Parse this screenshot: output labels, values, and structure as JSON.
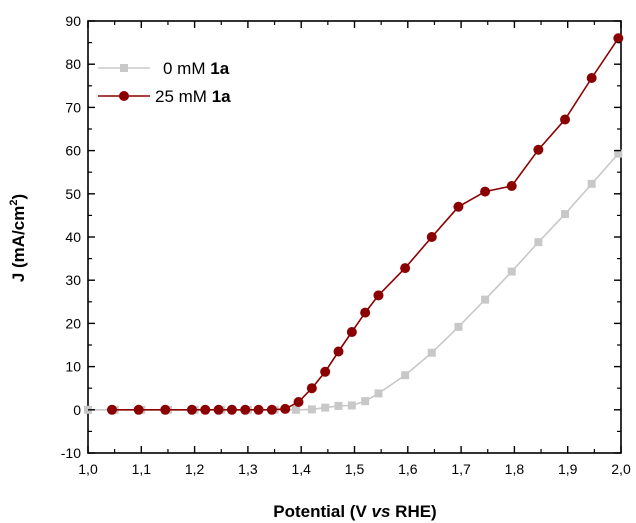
{
  "chart_data": {
    "type": "line",
    "xlabel": {
      "pre": "Potential (V ",
      "italic": "vs",
      "post": " RHE)"
    },
    "ylabel": {
      "main": "J (mA/cm",
      "sup": "2",
      "close": ")"
    },
    "xlim": [
      1.0,
      2.0
    ],
    "ylim": [
      -10,
      90
    ],
    "x_ticks": [
      1.0,
      1.1,
      1.2,
      1.3,
      1.4,
      1.5,
      1.6,
      1.7,
      1.8,
      1.9,
      2.0
    ],
    "x_tick_labels": [
      "1,0",
      "1,1",
      "1,2",
      "1,3",
      "1,4",
      "1,5",
      "1,6",
      "1,7",
      "1,8",
      "1,9",
      "2,0"
    ],
    "y_ticks": [
      -10,
      0,
      10,
      20,
      30,
      40,
      50,
      60,
      70,
      80,
      90
    ],
    "y_tick_labels": [
      "-10",
      "0",
      "10",
      "20",
      "30",
      "40",
      "50",
      "60",
      "70",
      "80",
      "90"
    ],
    "legend_position": "top-left",
    "series": [
      {
        "name": "0 mM 1a",
        "legend": {
          "pre": "0 mM ",
          "bold": "1a"
        },
        "color": "#c8c8c8",
        "marker": "square",
        "x": [
          1.0,
          1.05,
          1.1,
          1.15,
          1.2,
          1.25,
          1.3,
          1.35,
          1.39,
          1.42,
          1.445,
          1.47,
          1.495,
          1.52,
          1.545,
          1.595,
          1.645,
          1.695,
          1.745,
          1.795,
          1.845,
          1.895,
          1.945,
          1.995
        ],
        "y": [
          0,
          0,
          0,
          0,
          0,
          0,
          0,
          0,
          0,
          0.1,
          0.5,
          0.9,
          1.0,
          2.0,
          3.8,
          8.0,
          13.2,
          19.2,
          25.5,
          32.0,
          38.8,
          45.3,
          52.3,
          59.3
        ]
      },
      {
        "name": "25 mM 1a",
        "legend": {
          "pre": "25 mM ",
          "bold": "1a"
        },
        "color": "#8b0000",
        "marker": "circle",
        "x": [
          1.045,
          1.095,
          1.145,
          1.195,
          1.22,
          1.245,
          1.27,
          1.295,
          1.32,
          1.345,
          1.37,
          1.395,
          1.42,
          1.445,
          1.47,
          1.495,
          1.52,
          1.545,
          1.595,
          1.645,
          1.695,
          1.745,
          1.795,
          1.845,
          1.895,
          1.945,
          1.995
        ],
        "y": [
          0,
          0,
          0,
          0,
          0,
          0,
          0,
          0,
          0,
          0,
          0.2,
          1.8,
          5.0,
          8.8,
          13.5,
          18.0,
          22.5,
          26.5,
          32.8,
          40.0,
          47.0,
          50.5,
          51.8,
          60.2,
          67.2,
          76.8,
          86.0
        ]
      }
    ]
  }
}
